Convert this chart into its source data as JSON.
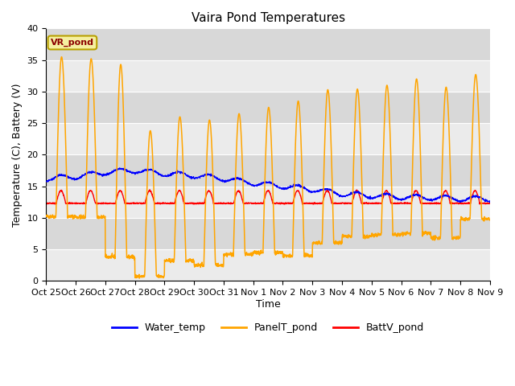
{
  "title": "Vaira Pond Temperatures",
  "xlabel": "Time",
  "ylabel": "Temperature (C), Battery (V)",
  "ylim": [
    0,
    40
  ],
  "yticks": [
    0,
    5,
    10,
    15,
    20,
    25,
    30,
    35,
    40
  ],
  "xtick_labels": [
    "Oct 25",
    "Oct 26",
    "Oct 27",
    "Oct 28",
    "Oct 29",
    "Oct 30",
    "Oct 31",
    "Nov 1",
    "Nov 2",
    "Nov 3",
    "Nov 4",
    "Nov 5",
    "Nov 6",
    "Nov 7",
    "Nov 8",
    "Nov 9"
  ],
  "legend_labels": [
    "Water_temp",
    "PanelT_pond",
    "BattV_pond"
  ],
  "legend_colors": [
    "#0000ff",
    "#ffa500",
    "#ff0000"
  ],
  "site_label": "VR_pond",
  "plot_bg_light": "#ebebeb",
  "plot_bg_dark": "#d8d8d8",
  "fig_bg": "#ffffff",
  "title_fontsize": 11,
  "axis_label_fontsize": 9,
  "tick_fontsize": 8,
  "day_peaks": [
    35.5,
    35.2,
    34.3,
    23.8,
    26.0,
    25.5,
    26.5,
    27.5,
    28.5,
    30.3,
    30.4,
    31.0,
    32.0,
    30.7,
    32.7
  ],
  "day_mins": [
    10.2,
    10.1,
    3.8,
    0.7,
    3.2,
    2.5,
    4.2,
    4.5,
    4.0,
    6.0,
    7.0,
    7.3,
    7.5,
    6.8,
    9.8
  ],
  "water_profile": [
    16.2,
    16.5,
    17.2,
    17.5,
    17.0,
    16.7,
    16.2,
    15.5,
    15.0,
    14.5,
    13.8,
    13.5,
    13.3,
    13.2,
    13.0,
    13.0
  ],
  "batt_base": 12.5,
  "batt_day_delta": 1.8,
  "n_days": 15,
  "n_pts_per_day": 144
}
